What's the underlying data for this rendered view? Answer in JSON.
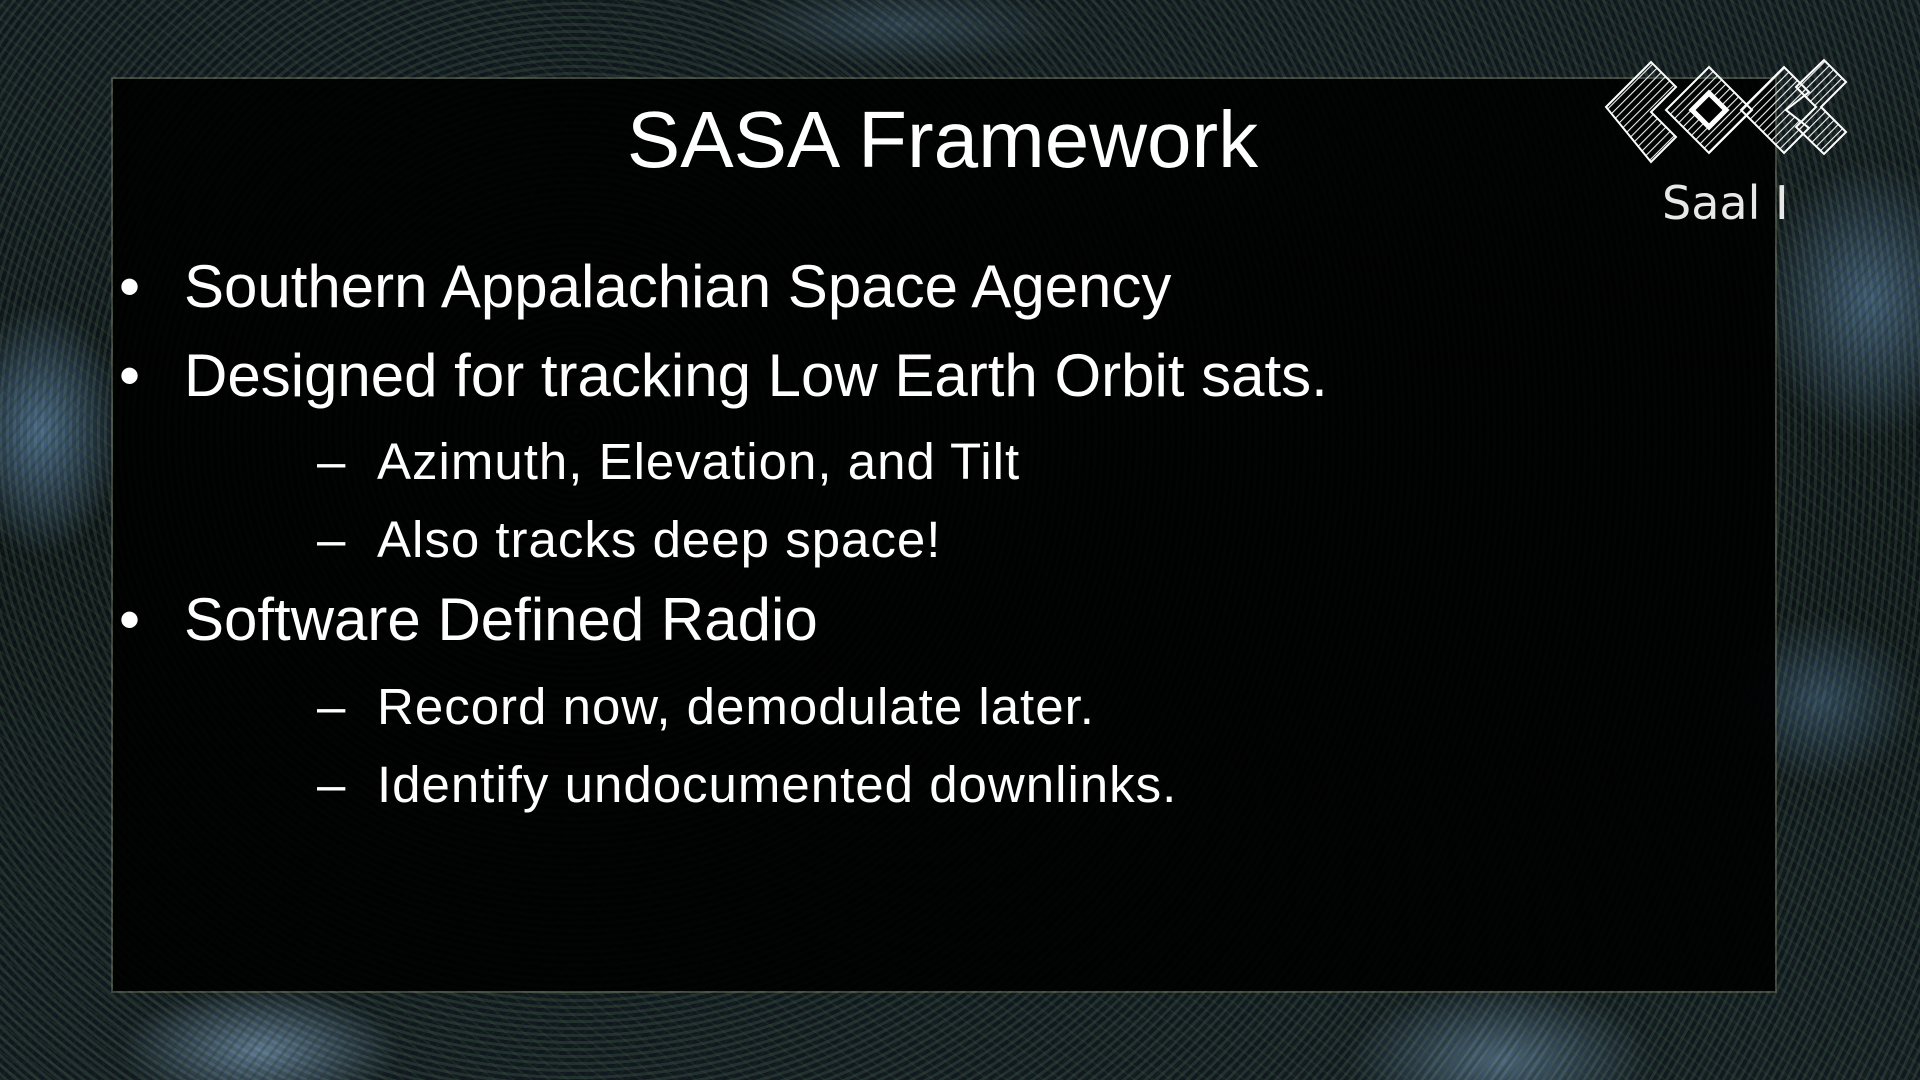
{
  "slide": {
    "title": "SASA Framework",
    "bullet_marker": "•",
    "sub_marker": "–",
    "items": [
      {
        "level": 1,
        "text": "Southern Appalachian Space Agency"
      },
      {
        "level": 1,
        "text": "Designed for tracking Low Earth Orbit sats."
      },
      {
        "level": 2,
        "text": "Azimuth, Elevation, and Tilt"
      },
      {
        "level": 2,
        "text": "Also tracks deep space!"
      },
      {
        "level": 1,
        "text": "Software Defined Radio"
      },
      {
        "level": 2,
        "text": "Record now, demodulate later."
      },
      {
        "level": 2,
        "text": "Identify undocumented downlinks."
      }
    ]
  },
  "overlay": {
    "logo_icon": "congress-logo-icon",
    "room_label": "Saal I"
  }
}
